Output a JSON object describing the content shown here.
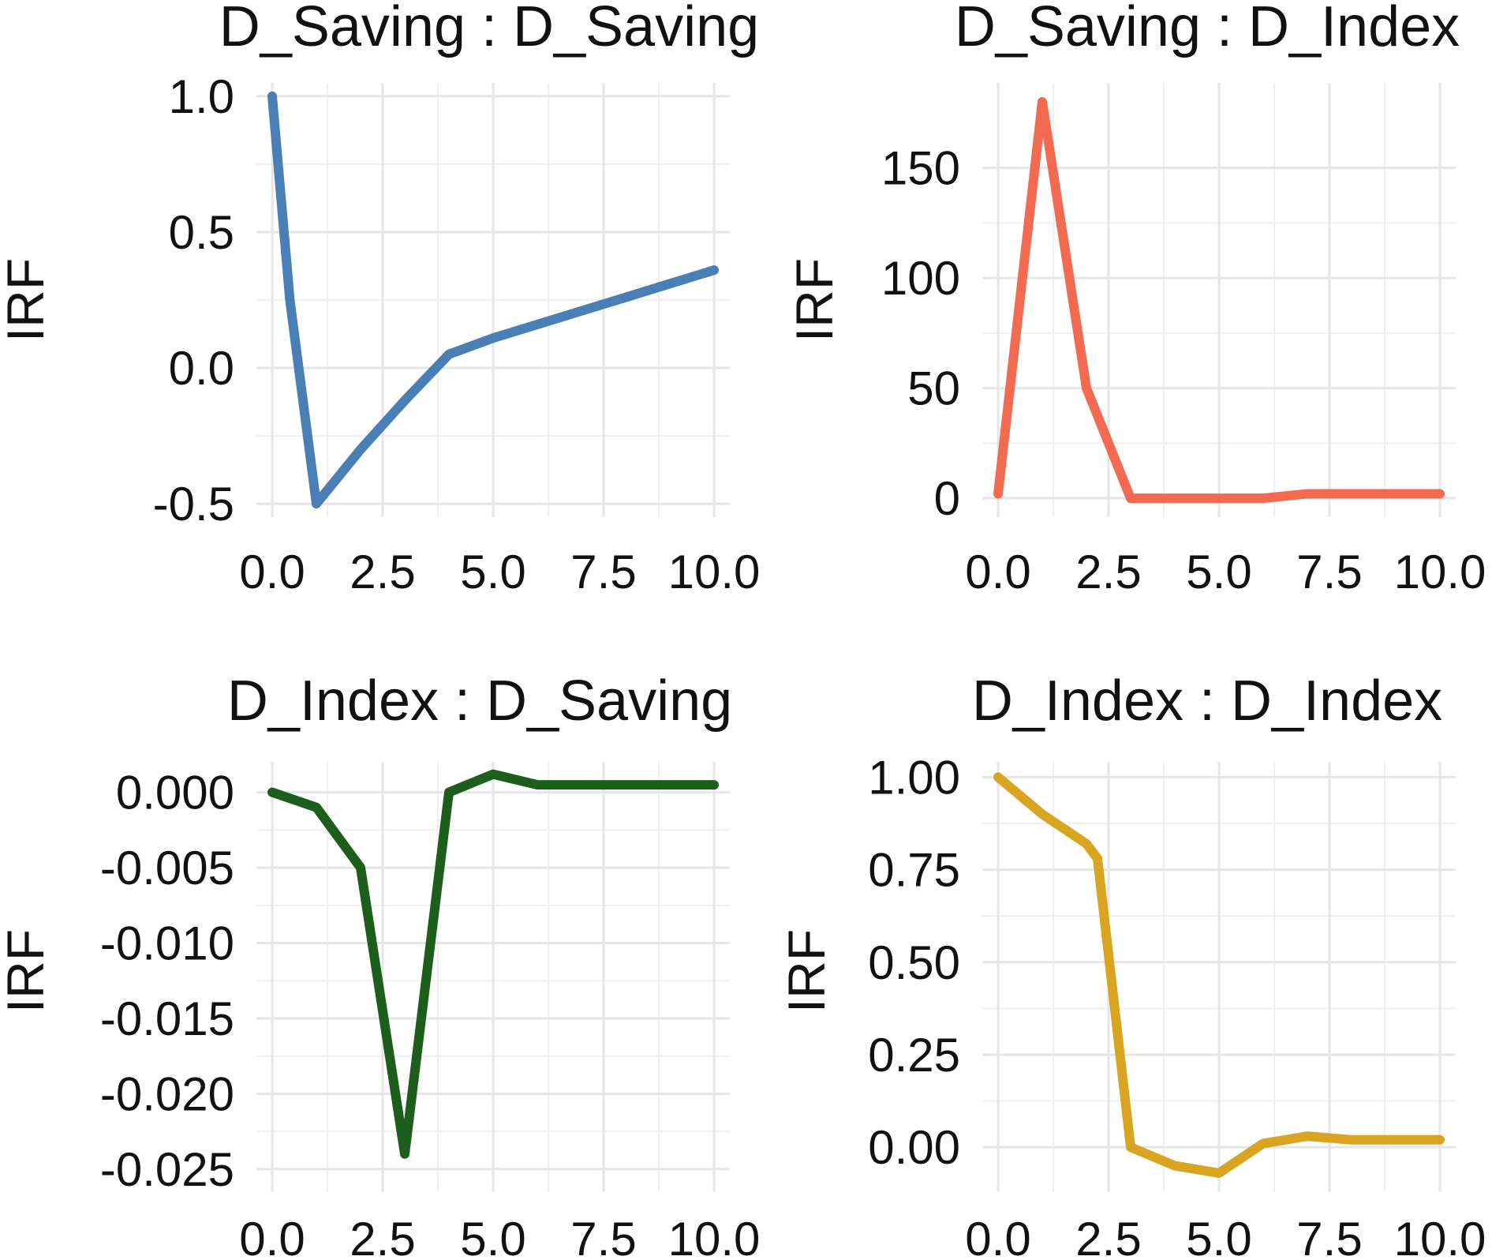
{
  "chart_data": [
    {
      "type": "line",
      "title": "D_Saving : D_Saving",
      "xlabel": "",
      "ylabel": "IRF",
      "xlim": [
        0,
        10
      ],
      "ylim": [
        -0.52,
        1.02
      ],
      "x_ticks": [
        0,
        2.5,
        5,
        7.5,
        10
      ],
      "x_tick_labels": [
        "0.0",
        "2.5",
        "5.0",
        "7.5",
        "10.0"
      ],
      "y_ticks": [
        -0.5,
        0,
        0.5,
        1
      ],
      "y_tick_labels": [
        "-0.5",
        "0.0",
        "0.5",
        "1.0"
      ],
      "grid": true,
      "color": "#4a7fb5",
      "series": [
        {
          "x": [
            0,
            0.4,
            1,
            2,
            3,
            4,
            5,
            6,
            7,
            8,
            9,
            10
          ],
          "y": [
            1.0,
            0.25,
            -0.5,
            -0.3,
            -0.12,
            0.05,
            0.11,
            0.16,
            0.21,
            0.26,
            0.31,
            0.36
          ]
        }
      ]
    },
    {
      "type": "line",
      "title": "D_Saving : D_Index",
      "xlabel": "",
      "ylabel": "IRF",
      "xlim": [
        0,
        10
      ],
      "ylim": [
        -5,
        185
      ],
      "x_ticks": [
        0,
        2.5,
        5,
        7.5,
        10
      ],
      "x_tick_labels": [
        "0.0",
        "2.5",
        "5.0",
        "7.5",
        "10.0"
      ],
      "y_ticks": [
        0,
        50,
        100,
        150
      ],
      "y_tick_labels": [
        "0",
        "50",
        "100",
        "150"
      ],
      "grid": true,
      "color": "#f26b50",
      "series": [
        {
          "x": [
            0,
            1,
            2,
            3,
            4,
            5,
            6,
            7,
            8,
            9,
            10
          ],
          "y": [
            2,
            180,
            50,
            0,
            0,
            0,
            0,
            2,
            2,
            2,
            2
          ]
        }
      ]
    },
    {
      "type": "line",
      "title": "D_Index : D_Saving",
      "xlabel": "",
      "ylabel": "IRF",
      "xlim": [
        0,
        10
      ],
      "ylim": [
        -0.026,
        0.0015
      ],
      "x_ticks": [
        0,
        2.5,
        5,
        7.5,
        10
      ],
      "x_tick_labels": [
        "0.0",
        "2.5",
        "5.0",
        "7.5",
        "10.0"
      ],
      "y_ticks": [
        -0.025,
        -0.02,
        -0.015,
        -0.01,
        -0.005,
        0
      ],
      "y_tick_labels": [
        "-0.025",
        "-0.020",
        "-0.015",
        "-0.010",
        "-0.005",
        "0.000"
      ],
      "grid": true,
      "color": "#1d5e1d",
      "series": [
        {
          "x": [
            0,
            1,
            2,
            3,
            4,
            5,
            6,
            7,
            8,
            9,
            10
          ],
          "y": [
            0.0,
            -0.001,
            -0.005,
            -0.024,
            0.0,
            0.0012,
            0.0005,
            0.0005,
            0.0005,
            0.0005,
            0.0005
          ]
        }
      ]
    },
    {
      "type": "line",
      "title": "D_Index : D_Index",
      "xlabel": "",
      "ylabel": "IRF",
      "xlim": [
        0,
        10
      ],
      "ylim": [
        -0.1,
        1.02
      ],
      "x_ticks": [
        0,
        2.5,
        5,
        7.5,
        10
      ],
      "x_tick_labels": [
        "0.0",
        "2.5",
        "5.0",
        "7.5",
        "10.0"
      ],
      "y_ticks": [
        0,
        0.25,
        0.5,
        0.75,
        1
      ],
      "y_tick_labels": [
        "0.00",
        "0.25",
        "0.50",
        "0.75",
        "1.00"
      ],
      "grid": true,
      "color": "#d9a521",
      "series": [
        {
          "x": [
            0,
            1,
            2,
            2.25,
            3,
            4,
            5,
            6,
            7,
            8,
            9,
            10
          ],
          "y": [
            1.0,
            0.9,
            0.82,
            0.78,
            0.0,
            -0.05,
            -0.07,
            0.01,
            0.03,
            0.02,
            0.02,
            0.02
          ]
        }
      ]
    }
  ]
}
